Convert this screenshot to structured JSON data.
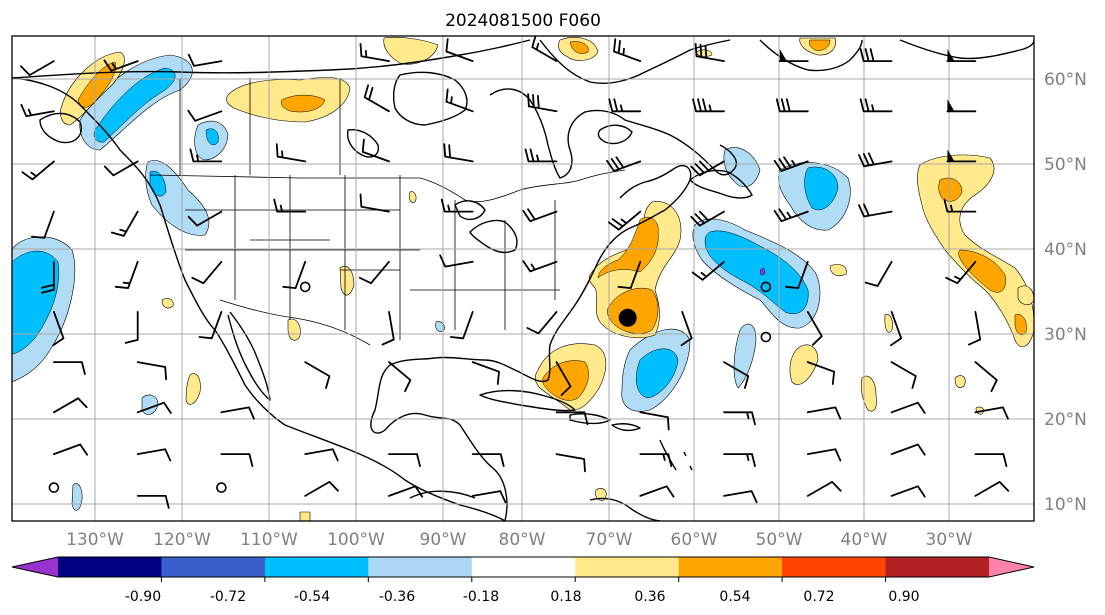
{
  "title": "2024081500 F060",
  "map": {
    "lon_range": [
      -140,
      -18
    ],
    "lat_range": [
      7,
      65
    ],
    "lon_labels": [
      "130°W",
      "120°W",
      "110°W",
      "100°W",
      "90°W",
      "80°W",
      "70°W",
      "60°W",
      "50°W",
      "40°W",
      "30°W"
    ],
    "lat_labels": [
      "60°N",
      "50°N",
      "40°N",
      "30°N",
      "20°N",
      "10°N"
    ],
    "marker": {
      "lon": -66.5,
      "lat": 31.3,
      "kind": "filled-circle"
    },
    "calm_markers": [
      {
        "lon": -105,
        "lat": 35
      },
      {
        "lon": -50,
        "lat": 35
      },
      {
        "lon": -50,
        "lat": 29
      },
      {
        "lon": -135,
        "lat": 11
      },
      {
        "lon": -115,
        "lat": 11
      }
    ]
  },
  "colorbar": {
    "labels": [
      "-0.90",
      "-0.72",
      "-0.54",
      "-0.36",
      "-0.18",
      "0.18",
      "0.36",
      "0.54",
      "0.72",
      "0.90"
    ],
    "colors": [
      "#9a32cd",
      "#000080",
      "#3a5fcd",
      "#00bfff",
      "#add8f5",
      "#ffffff",
      "#ffe98a",
      "#ffa500",
      "#ff4500",
      "#b22222",
      "#ff82ab"
    ]
  },
  "colors": {
    "light_blue": "#b0dcf6",
    "blue": "#00bfff",
    "yellow": "#ffe98a",
    "orange": "#ffa500",
    "purple": "#9a32cd"
  },
  "wind_barbs": [
    {
      "lon": -135,
      "lat": 62,
      "dir": 240,
      "spd": 10
    },
    {
      "lon": -125,
      "lat": 62,
      "dir": 250,
      "spd": 15
    },
    {
      "lon": -115,
      "lat": 62,
      "dir": 260,
      "spd": 10
    },
    {
      "lon": -95,
      "lat": 62,
      "dir": 280,
      "spd": 15
    },
    {
      "lon": -85,
      "lat": 62,
      "dir": 290,
      "spd": 10
    },
    {
      "lon": -75,
      "lat": 62,
      "dir": 300,
      "spd": 15
    },
    {
      "lon": -65,
      "lat": 62,
      "dir": 290,
      "spd": 25
    },
    {
      "lon": -55,
      "lat": 62,
      "dir": 280,
      "spd": 30
    },
    {
      "lon": -45,
      "lat": 62,
      "dir": 270,
      "spd": 50
    },
    {
      "lon": -35,
      "lat": 62,
      "dir": 270,
      "spd": 30
    },
    {
      "lon": -25,
      "lat": 62,
      "dir": 270,
      "spd": 50
    },
    {
      "lon": -135,
      "lat": 56,
      "dir": 260,
      "spd": 15
    },
    {
      "lon": -115,
      "lat": 56,
      "dir": 250,
      "spd": 10
    },
    {
      "lon": -95,
      "lat": 56,
      "dir": 300,
      "spd": 20
    },
    {
      "lon": -85,
      "lat": 56,
      "dir": 290,
      "spd": 15
    },
    {
      "lon": -75,
      "lat": 56,
      "dir": 280,
      "spd": 30
    },
    {
      "lon": -65,
      "lat": 56,
      "dir": 270,
      "spd": 25
    },
    {
      "lon": -55,
      "lat": 56,
      "dir": 270,
      "spd": 35
    },
    {
      "lon": -45,
      "lat": 56,
      "dir": 270,
      "spd": 30
    },
    {
      "lon": -35,
      "lat": 56,
      "dir": 270,
      "spd": 25
    },
    {
      "lon": -25,
      "lat": 56,
      "dir": 270,
      "spd": 50
    },
    {
      "lon": -135,
      "lat": 50,
      "dir": 230,
      "spd": 15
    },
    {
      "lon": -125,
      "lat": 50,
      "dir": 240,
      "spd": 10
    },
    {
      "lon": -115,
      "lat": 50,
      "dir": 270,
      "spd": 15
    },
    {
      "lon": -105,
      "lat": 50,
      "dir": 280,
      "spd": 15
    },
    {
      "lon": -95,
      "lat": 50,
      "dir": 290,
      "spd": 10
    },
    {
      "lon": -85,
      "lat": 50,
      "dir": 280,
      "spd": 20
    },
    {
      "lon": -75,
      "lat": 50,
      "dir": 270,
      "spd": 25
    },
    {
      "lon": -65,
      "lat": 50,
      "dir": 250,
      "spd": 30
    },
    {
      "lon": -55,
      "lat": 50,
      "dir": 240,
      "spd": 30
    },
    {
      "lon": -45,
      "lat": 50,
      "dir": 250,
      "spd": 35
    },
    {
      "lon": -35,
      "lat": 50,
      "dir": 260,
      "spd": 30
    },
    {
      "lon": -25,
      "lat": 50,
      "dir": 270,
      "spd": 50
    },
    {
      "lon": -135,
      "lat": 44,
      "dir": 200,
      "spd": 10
    },
    {
      "lon": -125,
      "lat": 44,
      "dir": 210,
      "spd": 15
    },
    {
      "lon": -115,
      "lat": 44,
      "dir": 240,
      "spd": 10
    },
    {
      "lon": -105,
      "lat": 44,
      "dir": 270,
      "spd": 15
    },
    {
      "lon": -95,
      "lat": 44,
      "dir": 280,
      "spd": 10
    },
    {
      "lon": -85,
      "lat": 44,
      "dir": 270,
      "spd": 15
    },
    {
      "lon": -75,
      "lat": 44,
      "dir": 250,
      "spd": 20
    },
    {
      "lon": -65,
      "lat": 44,
      "dir": 230,
      "spd": 25
    },
    {
      "lon": -55,
      "lat": 44,
      "dir": 240,
      "spd": 30
    },
    {
      "lon": -45,
      "lat": 44,
      "dir": 250,
      "spd": 25
    },
    {
      "lon": -35,
      "lat": 44,
      "dir": 260,
      "spd": 20
    },
    {
      "lon": -25,
      "lat": 44,
      "dir": 270,
      "spd": 15
    },
    {
      "lon": -135,
      "lat": 38,
      "dir": 180,
      "spd": 20
    },
    {
      "lon": -125,
      "lat": 38,
      "dir": 200,
      "spd": 15
    },
    {
      "lon": -115,
      "lat": 38,
      "dir": 220,
      "spd": 10
    },
    {
      "lon": -105,
      "lat": 38,
      "dir": 200,
      "spd": 10
    },
    {
      "lon": -95,
      "lat": 38,
      "dir": 220,
      "spd": 10
    },
    {
      "lon": -85,
      "lat": 38,
      "dir": 260,
      "spd": 10
    },
    {
      "lon": -75,
      "lat": 38,
      "dir": 250,
      "spd": 15
    },
    {
      "lon": -65,
      "lat": 38,
      "dir": 200,
      "spd": 10
    },
    {
      "lon": -55,
      "lat": 38,
      "dir": 230,
      "spd": 15
    },
    {
      "lon": -45,
      "lat": 38,
      "dir": 200,
      "spd": 10
    },
    {
      "lon": -35,
      "lat": 38,
      "dir": 210,
      "spd": 10
    },
    {
      "lon": -25,
      "lat": 38,
      "dir": 220,
      "spd": 15
    },
    {
      "lon": -135,
      "lat": 32,
      "dir": 160,
      "spd": 10
    },
    {
      "lon": -125,
      "lat": 32,
      "dir": 180,
      "spd": 10
    },
    {
      "lon": -115,
      "lat": 32,
      "dir": 200,
      "spd": 10
    },
    {
      "lon": -95,
      "lat": 32,
      "dir": 170,
      "spd": 10
    },
    {
      "lon": -85,
      "lat": 32,
      "dir": 200,
      "spd": 10
    },
    {
      "lon": -75,
      "lat": 32,
      "dir": 220,
      "spd": 10
    },
    {
      "lon": -60,
      "lat": 32,
      "dir": 160,
      "spd": 10
    },
    {
      "lon": -45,
      "lat": 32,
      "dir": 150,
      "spd": 10
    },
    {
      "lon": -35,
      "lat": 32,
      "dir": 160,
      "spd": 10
    },
    {
      "lon": -25,
      "lat": 32,
      "dir": 170,
      "spd": 10
    },
    {
      "lon": -135,
      "lat": 26,
      "dir": 90,
      "spd": 10
    },
    {
      "lon": -125,
      "lat": 26,
      "dir": 100,
      "spd": 10
    },
    {
      "lon": -105,
      "lat": 26,
      "dir": 120,
      "spd": 10
    },
    {
      "lon": -95,
      "lat": 26,
      "dir": 130,
      "spd": 10
    },
    {
      "lon": -85,
      "lat": 26,
      "dir": 110,
      "spd": 10
    },
    {
      "lon": -75,
      "lat": 26,
      "dir": 150,
      "spd": 10
    },
    {
      "lon": -55,
      "lat": 26,
      "dir": 120,
      "spd": 10
    },
    {
      "lon": -45,
      "lat": 26,
      "dir": 110,
      "spd": 10
    },
    {
      "lon": -35,
      "lat": 26,
      "dir": 120,
      "spd": 10
    },
    {
      "lon": -25,
      "lat": 26,
      "dir": 130,
      "spd": 10
    },
    {
      "lon": -135,
      "lat": 20,
      "dir": 60,
      "spd": 10
    },
    {
      "lon": -125,
      "lat": 20,
      "dir": 70,
      "spd": 10
    },
    {
      "lon": -115,
      "lat": 20,
      "dir": 80,
      "spd": 10
    },
    {
      "lon": -75,
      "lat": 20,
      "dir": 90,
      "spd": 10
    },
    {
      "lon": -65,
      "lat": 20,
      "dir": 100,
      "spd": 10
    },
    {
      "lon": -55,
      "lat": 20,
      "dir": 90,
      "spd": 15
    },
    {
      "lon": -45,
      "lat": 20,
      "dir": 80,
      "spd": 10
    },
    {
      "lon": -35,
      "lat": 20,
      "dir": 70,
      "spd": 10
    },
    {
      "lon": -25,
      "lat": 20,
      "dir": 80,
      "spd": 10
    },
    {
      "lon": -135,
      "lat": 15,
      "dir": 70,
      "spd": 10
    },
    {
      "lon": -125,
      "lat": 15,
      "dir": 80,
      "spd": 10
    },
    {
      "lon": -115,
      "lat": 15,
      "dir": 90,
      "spd": 10
    },
    {
      "lon": -105,
      "lat": 15,
      "dir": 80,
      "spd": 10
    },
    {
      "lon": -95,
      "lat": 15,
      "dir": 90,
      "spd": 10
    },
    {
      "lon": -85,
      "lat": 15,
      "dir": 90,
      "spd": 10
    },
    {
      "lon": -75,
      "lat": 15,
      "dir": 100,
      "spd": 10
    },
    {
      "lon": -65,
      "lat": 15,
      "dir": 90,
      "spd": 15
    },
    {
      "lon": -55,
      "lat": 15,
      "dir": 90,
      "spd": 15
    },
    {
      "lon": -45,
      "lat": 15,
      "dir": 80,
      "spd": 10
    },
    {
      "lon": -35,
      "lat": 15,
      "dir": 70,
      "spd": 10
    },
    {
      "lon": -25,
      "lat": 15,
      "dir": 90,
      "spd": 10
    },
    {
      "lon": -125,
      "lat": 10,
      "dir": 90,
      "spd": 10
    },
    {
      "lon": -105,
      "lat": 10,
      "dir": 60,
      "spd": 10
    },
    {
      "lon": -95,
      "lat": 10,
      "dir": 70,
      "spd": 10
    },
    {
      "lon": -85,
      "lat": 10,
      "dir": 80,
      "spd": 10
    },
    {
      "lon": -65,
      "lat": 10,
      "dir": 70,
      "spd": 10
    },
    {
      "lon": -55,
      "lat": 10,
      "dir": 80,
      "spd": 10
    },
    {
      "lon": -45,
      "lat": 10,
      "dir": 60,
      "spd": 10
    },
    {
      "lon": -35,
      "lat": 10,
      "dir": 70,
      "spd": 10
    },
    {
      "lon": -25,
      "lat": 10,
      "dir": 60,
      "spd": 10
    }
  ]
}
